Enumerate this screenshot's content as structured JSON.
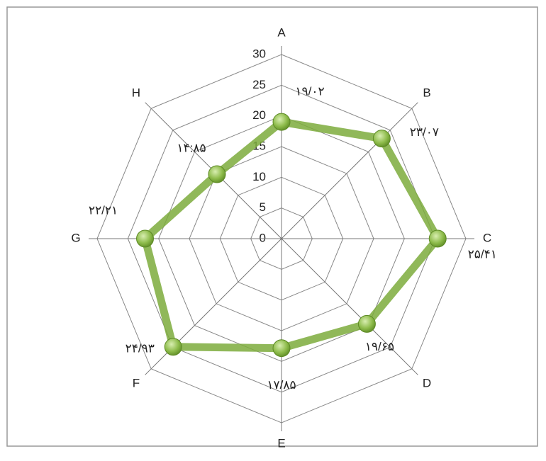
{
  "chart_data": {
    "type": "radar",
    "categories": [
      "A",
      "B",
      "C",
      "D",
      "E",
      "F",
      "G",
      "H"
    ],
    "values": [
      19.02,
      23.07,
      25.41,
      19.65,
      17.85,
      24.93,
      22.21,
      14.85
    ],
    "value_labels": [
      "۱۹/۰۲",
      "۲۳/۰۷",
      "۲۵/۴۱",
      "۱۹/۶۵",
      "۱۷/۸۵",
      "۲۴/۹۳",
      "۲۲/۲۱",
      "۱۴:۸۵"
    ],
    "color": "#7dac3c",
    "ylim": [
      0,
      30
    ],
    "yticks": [
      0,
      5,
      10,
      15,
      20,
      25,
      30
    ],
    "grid": true
  }
}
